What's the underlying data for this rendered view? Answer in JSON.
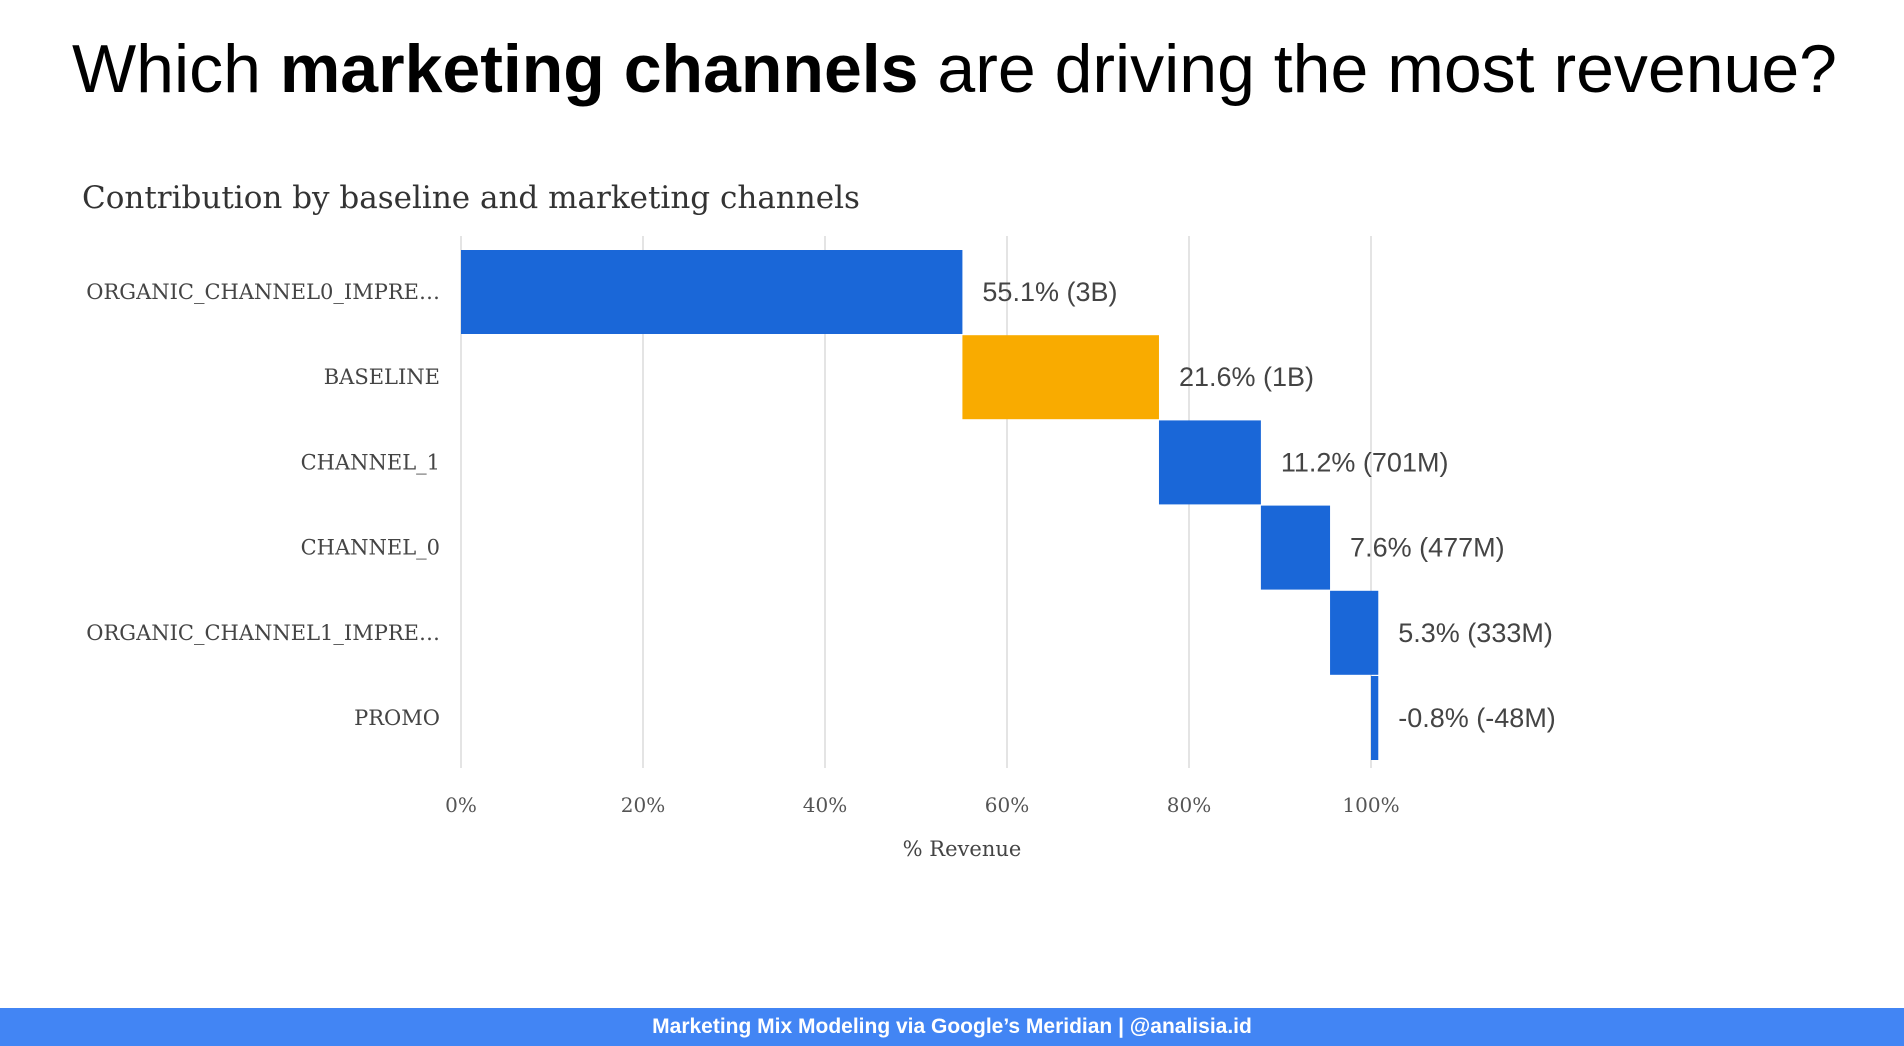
{
  "headline": {
    "prefix": "Which ",
    "bold": "marketing channels",
    "suffix": " are driving the most revenue?"
  },
  "chart_data": {
    "type": "bar",
    "subtype": "waterfall",
    "orientation": "horizontal",
    "title": "Contribution by baseline and marketing channels",
    "xlabel": "% Revenue",
    "ylabel": "",
    "xlim": [
      0,
      100
    ],
    "x_ticks": [
      "0%",
      "20%",
      "40%",
      "60%",
      "80%",
      "100%"
    ],
    "x_tick_values": [
      0,
      20,
      40,
      60,
      80,
      100
    ],
    "grid": true,
    "categories": [
      "ORGANIC_CHANNEL0_IMPRE…",
      "BASELINE",
      "CHANNEL_1",
      "CHANNEL_0",
      "ORGANIC_CHANNEL1_IMPRE…",
      "PROMO"
    ],
    "values": [
      55.1,
      21.6,
      11.2,
      7.6,
      5.3,
      -0.8
    ],
    "data_labels": [
      "55.1% (3B)",
      "21.6% (1B)",
      "11.2% (701M)",
      "7.6% (477M)",
      "5.3% (333M)",
      "-0.8% (-48M)"
    ],
    "colors": [
      "#1a67d8",
      "#f9ab00",
      "#1a67d8",
      "#1a67d8",
      "#1a67d8",
      "#1a67d8"
    ]
  },
  "footer": {
    "text": "Marketing Mix Modeling via Google’s Meridian | @analisia.id"
  }
}
